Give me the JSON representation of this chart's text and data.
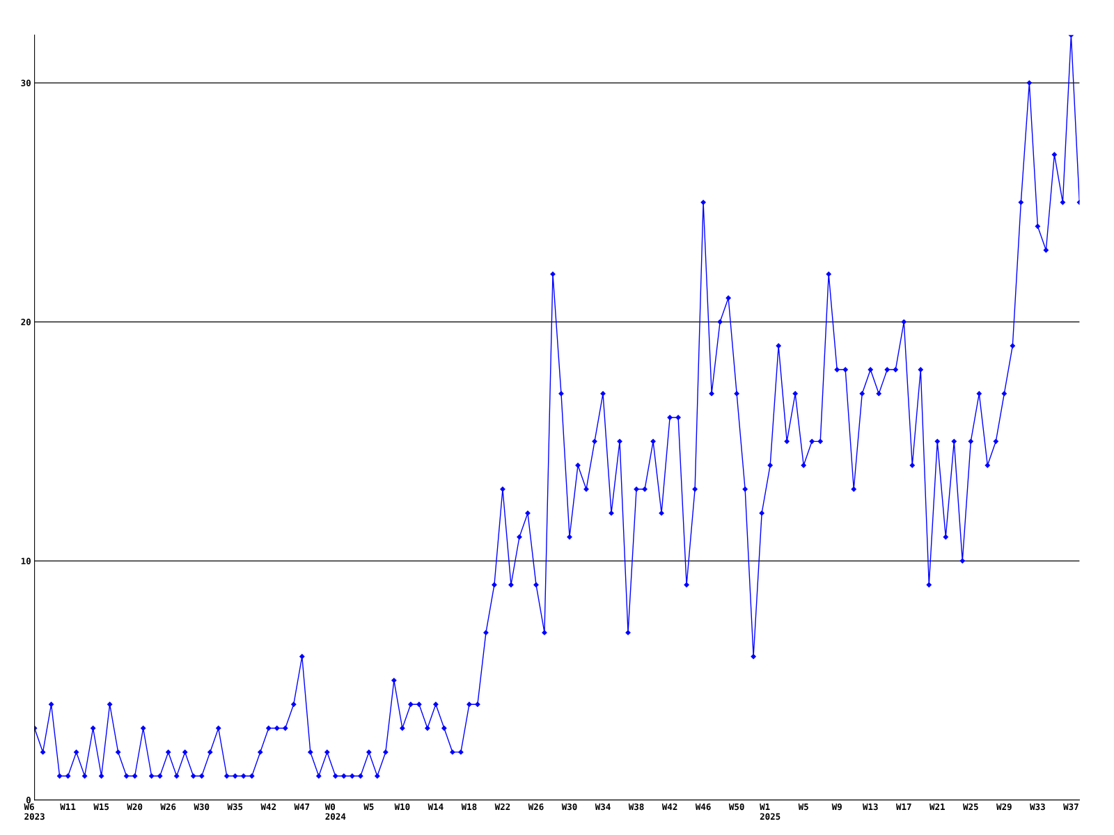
{
  "chart_data": {
    "type": "line",
    "categories": [
      "W6\n2023",
      null,
      null,
      null,
      "W11",
      null,
      null,
      null,
      "W15",
      null,
      null,
      null,
      "W20",
      null,
      null,
      null,
      "W26",
      null,
      null,
      null,
      "W30",
      null,
      null,
      null,
      "W35",
      null,
      null,
      null,
      "W42",
      null,
      null,
      null,
      "W47",
      null,
      null,
      null,
      "W0\n2024",
      null,
      null,
      null,
      "W5",
      null,
      null,
      null,
      "W10",
      null,
      null,
      null,
      "W14",
      null,
      null,
      null,
      "W18",
      null,
      null,
      null,
      "W22",
      null,
      null,
      null,
      "W26",
      null,
      null,
      null,
      "W30",
      null,
      null,
      null,
      "W34",
      null,
      null,
      null,
      "W38",
      null,
      null,
      null,
      "W42",
      null,
      null,
      null,
      "W46",
      null,
      null,
      null,
      "W50",
      null,
      null,
      null,
      "W1\n2025",
      null,
      null,
      null,
      "W5",
      null,
      null,
      null,
      "W9",
      null,
      null,
      null,
      "W13",
      null,
      null,
      null,
      "W17",
      null,
      null,
      null,
      "W21",
      null,
      null,
      null,
      "W25",
      null,
      null,
      null,
      "W29",
      null,
      null,
      null,
      "W33",
      null,
      null,
      null,
      "W37",
      null
    ],
    "series": [
      {
        "color": "#0000ff",
        "values": [
          3,
          2,
          4,
          1,
          1,
          2,
          1,
          3,
          1,
          4,
          2,
          1,
          1,
          3,
          1,
          1,
          2,
          1,
          2,
          1,
          1,
          2,
          3,
          1,
          1,
          1,
          1,
          2,
          3,
          3,
          3,
          4,
          6,
          2,
          1,
          2,
          1,
          1,
          1,
          1,
          2,
          1,
          2,
          5,
          3,
          4,
          4,
          3,
          4,
          3,
          2,
          2,
          4,
          4,
          7,
          9,
          13,
          9,
          11,
          12,
          9,
          7,
          22,
          17,
          11,
          14,
          13,
          15,
          17,
          12,
          15,
          7,
          13,
          13,
          15,
          12,
          16,
          16,
          9,
          13,
          25,
          17,
          20,
          21,
          17,
          13,
          6,
          12,
          14,
          19,
          15,
          17,
          14,
          15,
          15,
          22,
          18,
          18,
          13,
          17,
          18,
          17,
          18,
          18,
          20,
          14,
          18,
          9,
          15,
          11,
          15,
          10,
          15,
          17,
          14,
          15,
          17,
          19,
          25,
          30,
          24,
          23,
          27,
          25,
          32,
          25
        ]
      }
    ],
    "ylim": [
      0,
      32
    ],
    "yticks": [
      0,
      10,
      20,
      30
    ],
    "grid": "y",
    "marker": "diamond",
    "line_style": "solid",
    "legend": false
  }
}
